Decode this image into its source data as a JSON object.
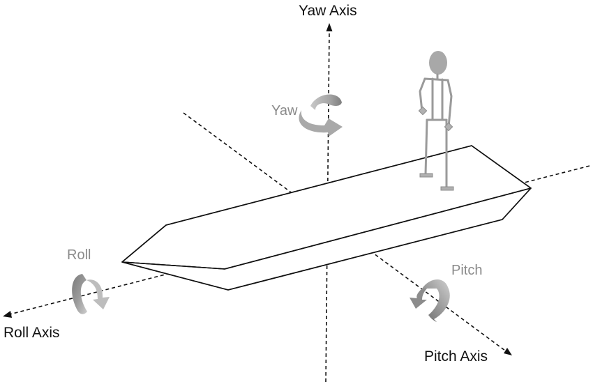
{
  "labels": {
    "yaw_axis": "Yaw Axis",
    "roll_axis": "Roll Axis",
    "pitch_axis": "Pitch Axis",
    "yaw": "Yaw",
    "roll": "Roll",
    "pitch": "Pitch"
  },
  "colors": {
    "axis_line": "#111111",
    "boat_outline": "#111111",
    "rotation_label": "#8a8a8a",
    "arrow_light": "#b9b9b9",
    "arrow_dark": "#777777",
    "figure": "#9a9a9a",
    "figure_head": "#a8a8a8"
  },
  "icons": {
    "yaw_arrow": "curved-rotation-arrow-icon",
    "roll_arrow": "curved-rotation-arrow-icon",
    "pitch_arrow": "curved-rotation-arrow-icon",
    "figure": "stick-figure-icon"
  }
}
